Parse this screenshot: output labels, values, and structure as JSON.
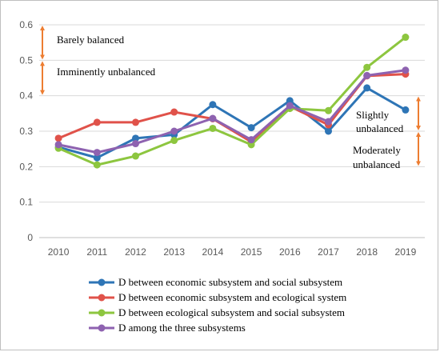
{
  "colors": {
    "arrow": "#ED7D31",
    "grid": "#d9d9d9",
    "axis": "#bfbfbf"
  },
  "chart_data": {
    "type": "line",
    "title": "",
    "xlabel": "",
    "ylabel": "",
    "x": [
      "2010",
      "2011",
      "2012",
      "2013",
      "2014",
      "2015",
      "2016",
      "2017",
      "2018",
      "2019"
    ],
    "ylim": [
      0,
      0.6
    ],
    "yticks": [
      0,
      0.1,
      0.2,
      0.3,
      0.4,
      0.5,
      0.6
    ],
    "ytick_labels": [
      "0",
      "0.1",
      "0.2",
      "0.3",
      "0.4",
      "0.5",
      "0.6"
    ],
    "grid": "horizontal",
    "legend_position": "bottom",
    "series": [
      {
        "name": "D between economic subsystem and social subsystem",
        "color": "#2E75B6",
        "values": [
          0.255,
          0.225,
          0.28,
          0.29,
          0.375,
          0.31,
          0.386,
          0.3,
          0.422,
          0.36
        ]
      },
      {
        "name": "D between economic subsystem and ecological system",
        "color": "#E0524A",
        "values": [
          0.28,
          0.325,
          0.325,
          0.354,
          0.335,
          0.27,
          0.37,
          0.318,
          0.456,
          0.461
        ]
      },
      {
        "name": "D between ecological subsystem and social subsystem",
        "color": "#8DC63F",
        "values": [
          0.252,
          0.205,
          0.23,
          0.274,
          0.308,
          0.262,
          0.364,
          0.358,
          0.48,
          0.565
        ]
      },
      {
        "name": "D among the three subsystems",
        "color": "#8E62B0",
        "values": [
          0.262,
          0.24,
          0.265,
          0.3,
          0.336,
          0.276,
          0.372,
          0.327,
          0.457,
          0.472
        ]
      }
    ],
    "annotations": [
      {
        "id": "barely",
        "text": "Barely balanced",
        "range": [
          0.5,
          0.6
        ]
      },
      {
        "id": "imminently",
        "text": "Imminently unbalanced",
        "range": [
          0.4,
          0.5
        ]
      },
      {
        "id": "slightly",
        "lines": [
          "Slightly",
          "unbalanced"
        ],
        "range": [
          0.3,
          0.4
        ]
      },
      {
        "id": "moderately",
        "lines": [
          "Moderately",
          "unbalanced"
        ],
        "range": [
          0.2,
          0.3
        ]
      }
    ]
  }
}
